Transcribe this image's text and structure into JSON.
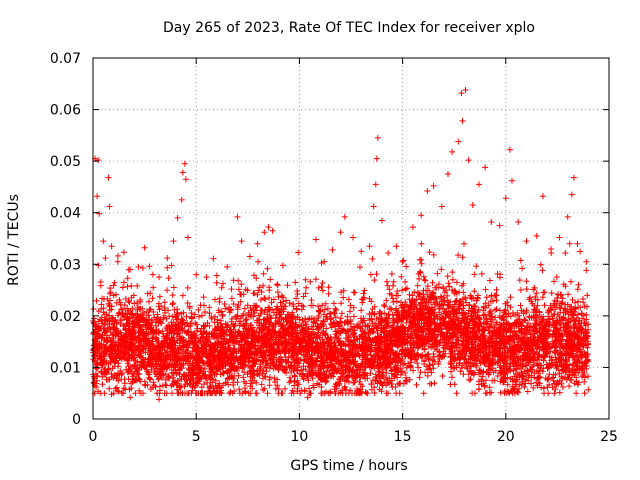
{
  "chart_data": {
    "type": "scatter",
    "title": "Day 265 of 2023, Rate Of TEC Index for receiver xplo",
    "xlabel": "GPS time / hours",
    "ylabel": "ROTI / TECUs",
    "xlim": [
      0,
      25
    ],
    "ylim": [
      0,
      0.07
    ],
    "x_ticks": [
      0,
      5,
      10,
      15,
      20,
      25
    ],
    "x_tick_labels": [
      "0",
      "5",
      "10",
      "15",
      "20",
      "25"
    ],
    "y_ticks": [
      0,
      0.01,
      0.02,
      0.03,
      0.04,
      0.05,
      0.06,
      0.07
    ],
    "y_tick_labels": [
      "0",
      "0.01",
      "0.02",
      "0.03",
      "0.04",
      "0.05",
      "0.06",
      "0.07"
    ],
    "grid": true,
    "marker": "plus",
    "marker_color": "#ff0000",
    "data_range_hours": [
      0,
      24
    ],
    "series": [
      {
        "name": "ROTI",
        "points": [
          [
            0.1,
            0.0505
          ],
          [
            0.25,
            0.0502
          ],
          [
            0.2,
            0.0432
          ],
          [
            0.3,
            0.0398
          ],
          [
            0.5,
            0.0345
          ],
          [
            0.6,
            0.0312
          ],
          [
            0.75,
            0.0468
          ],
          [
            0.8,
            0.0412
          ],
          [
            0.9,
            0.0335
          ],
          [
            1.2,
            0.0305
          ],
          [
            1.5,
            0.0265
          ],
          [
            1.8,
            0.029
          ],
          [
            2.2,
            0.0295
          ],
          [
            2.5,
            0.0332
          ],
          [
            2.9,
            0.028
          ],
          [
            3.2,
            0.0275
          ],
          [
            3.6,
            0.0312
          ],
          [
            3.9,
            0.0345
          ],
          [
            4.1,
            0.039
          ],
          [
            4.3,
            0.0425
          ],
          [
            4.35,
            0.0478
          ],
          [
            4.45,
            0.0495
          ],
          [
            4.5,
            0.0465
          ],
          [
            4.6,
            0.0352
          ],
          [
            5.0,
            0.028
          ],
          [
            5.5,
            0.0275
          ],
          [
            6.0,
            0.0278
          ],
          [
            6.5,
            0.0295
          ],
          [
            7.0,
            0.0392
          ],
          [
            7.2,
            0.0345
          ],
          [
            7.6,
            0.0315
          ],
          [
            8.0,
            0.0305
          ],
          [
            8.3,
            0.0362
          ],
          [
            8.5,
            0.0372
          ],
          [
            8.7,
            0.0365
          ],
          [
            9.2,
            0.0298
          ],
          [
            9.8,
            0.0265
          ],
          [
            10.3,
            0.027
          ],
          [
            10.8,
            0.0348
          ],
          [
            11.2,
            0.0305
          ],
          [
            11.6,
            0.0328
          ],
          [
            12.0,
            0.0362
          ],
          [
            12.2,
            0.0392
          ],
          [
            12.6,
            0.0352
          ],
          [
            13.0,
            0.0325
          ],
          [
            13.4,
            0.0335
          ],
          [
            13.6,
            0.0412
          ],
          [
            13.7,
            0.0455
          ],
          [
            13.75,
            0.0505
          ],
          [
            13.8,
            0.0545
          ],
          [
            14.0,
            0.0385
          ],
          [
            14.3,
            0.0322
          ],
          [
            14.7,
            0.0335
          ],
          [
            15.0,
            0.0305
          ],
          [
            15.5,
            0.0372
          ],
          [
            15.9,
            0.0395
          ],
          [
            16.2,
            0.0442
          ],
          [
            16.5,
            0.0452
          ],
          [
            16.9,
            0.0412
          ],
          [
            17.2,
            0.0475
          ],
          [
            17.4,
            0.0518
          ],
          [
            17.7,
            0.0538
          ],
          [
            17.85,
            0.0632
          ],
          [
            17.9,
            0.0578
          ],
          [
            18.05,
            0.0638
          ],
          [
            18.2,
            0.0502
          ],
          [
            18.4,
            0.0415
          ],
          [
            18.7,
            0.0455
          ],
          [
            19.0,
            0.0488
          ],
          [
            19.3,
            0.0382
          ],
          [
            19.7,
            0.0375
          ],
          [
            20.0,
            0.0428
          ],
          [
            20.2,
            0.0522
          ],
          [
            20.3,
            0.0462
          ],
          [
            20.6,
            0.0382
          ],
          [
            21.0,
            0.0345
          ],
          [
            21.5,
            0.0355
          ],
          [
            21.8,
            0.0432
          ],
          [
            22.2,
            0.0322
          ],
          [
            22.6,
            0.0352
          ],
          [
            23.0,
            0.0392
          ],
          [
            23.2,
            0.0435
          ],
          [
            23.3,
            0.0468
          ],
          [
            23.6,
            0.0325
          ],
          [
            23.9,
            0.0305
          ],
          [
            0.15,
            0.0062
          ],
          [
            0.9,
            0.0048
          ],
          [
            1.8,
            0.0042
          ],
          [
            3.2,
            0.0038
          ],
          [
            4.8,
            0.0062
          ],
          [
            6.2,
            0.0055
          ],
          [
            7.4,
            0.0052
          ],
          [
            9.0,
            0.0058
          ],
          [
            10.4,
            0.0042
          ],
          [
            11.7,
            0.0058
          ],
          [
            13.2,
            0.0052
          ],
          [
            14.5,
            0.0062
          ],
          [
            16.4,
            0.0068
          ],
          [
            18.7,
            0.0058
          ],
          [
            20.9,
            0.0062
          ],
          [
            22.5,
            0.0072
          ],
          [
            23.8,
            0.0072
          ]
        ]
      }
    ]
  }
}
